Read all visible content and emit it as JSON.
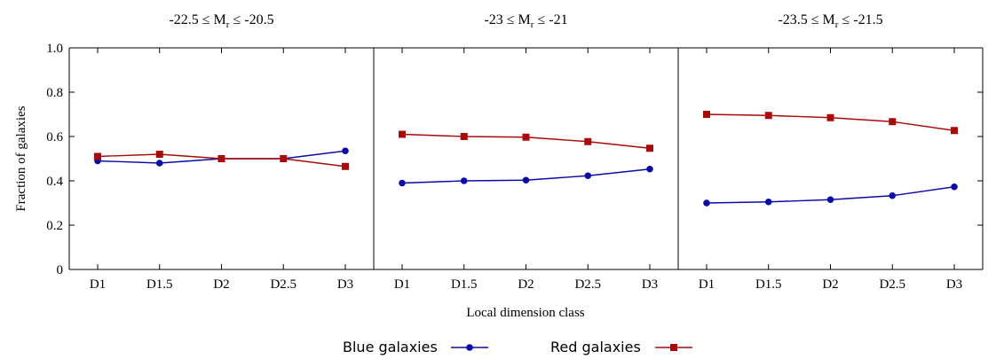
{
  "chart_data": {
    "type": "line",
    "xlabel": "Local dimension class",
    "ylabel": "Fraction of galaxies",
    "categories": [
      "D1",
      "D1.5",
      "D2",
      "D2.5",
      "D3"
    ],
    "ylim": [
      0,
      1.0
    ],
    "yticks": [
      "0",
      "0.2",
      "0.4",
      "0.6",
      "0.8",
      "1.0"
    ],
    "ytick_values": [
      0,
      0.2,
      0.4,
      0.6,
      0.8,
      1.0
    ],
    "legend_position": "bottom-center",
    "panels": [
      {
        "title_prefix": "-22.5 ≤ M",
        "title_sub": "r",
        "title_mid": " ≤ -20.5",
        "series": [
          {
            "name": "Blue galaxies",
            "values": [
              0.49,
              0.48,
              0.5,
              0.5,
              0.535
            ]
          },
          {
            "name": "Red galaxies",
            "values": [
              0.51,
              0.52,
              0.5,
              0.5,
              0.465
            ]
          }
        ]
      },
      {
        "title_prefix": "-23 ≤ M",
        "title_sub": "r",
        "title_mid": " ≤ -21",
        "series": [
          {
            "name": "Blue galaxies",
            "values": [
              0.39,
              0.4,
              0.403,
              0.423,
              0.453
            ]
          },
          {
            "name": "Red galaxies",
            "values": [
              0.61,
              0.6,
              0.597,
              0.577,
              0.547
            ]
          }
        ]
      },
      {
        "title_prefix": "-23.5 ≤ M",
        "title_sub": "r",
        "title_mid": " ≤ -21.5",
        "series": [
          {
            "name": "Blue galaxies",
            "values": [
              0.3,
              0.305,
              0.315,
              0.333,
              0.373
            ]
          },
          {
            "name": "Red galaxies",
            "values": [
              0.7,
              0.695,
              0.685,
              0.667,
              0.627
            ]
          }
        ]
      }
    ],
    "legend": [
      {
        "label": "Blue galaxies",
        "color": "#0a0aa8",
        "marker": "circle"
      },
      {
        "label": "Red galaxies",
        "color": "#a80a0a",
        "marker": "square"
      }
    ]
  }
}
